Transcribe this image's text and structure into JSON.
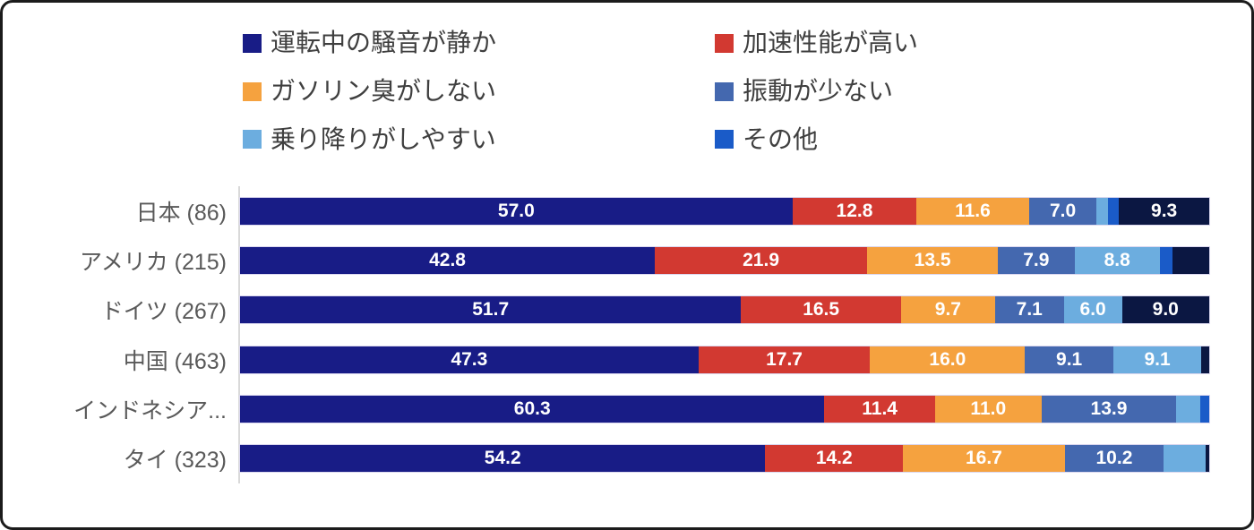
{
  "chart_data": {
    "type": "bar",
    "orientation": "horizontal",
    "stacked": true,
    "unit": "percent",
    "xlim": [
      0,
      100
    ],
    "grid": false,
    "legend_position": "top",
    "legend_columns": 2,
    "categories": [
      "日本 (86)",
      "アメリカ (215)",
      "ドイツ (267)",
      "中国 (463)",
      "インドネシア...",
      "タイ (323)"
    ],
    "series": [
      {
        "name": "運転中の騒音が静か",
        "color": "#181C86",
        "in_legend": true,
        "values": [
          57.0,
          42.8,
          51.7,
          47.3,
          60.3,
          54.2
        ],
        "labels": [
          "57.0",
          "42.8",
          "51.7",
          "47.3",
          "60.3",
          "54.2"
        ]
      },
      {
        "name": "加速性能が高い",
        "color": "#D23931",
        "in_legend": true,
        "values": [
          12.8,
          21.9,
          16.5,
          17.7,
          11.4,
          14.2
        ],
        "labels": [
          "12.8",
          "21.9",
          "16.5",
          "17.7",
          "11.4",
          "14.2"
        ]
      },
      {
        "name": "ガソリン臭がしない",
        "color": "#F5A23F",
        "in_legend": true,
        "values": [
          11.6,
          13.5,
          9.7,
          16.0,
          11.0,
          16.7
        ],
        "labels": [
          "11.6",
          "13.5",
          "9.7",
          "16.0",
          "11.0",
          "16.7"
        ]
      },
      {
        "name": "振動が少ない",
        "color": "#4468AF",
        "in_legend": true,
        "values": [
          7.0,
          7.9,
          7.1,
          9.1,
          13.9,
          10.2
        ],
        "labels": [
          "7.0",
          "7.9",
          "7.1",
          "9.1",
          "13.9",
          "10.2"
        ]
      },
      {
        "name": "乗り降りがしやすい",
        "color": "#6CADDF",
        "in_legend": true,
        "values": [
          1.2,
          8.8,
          6.0,
          9.1,
          2.5,
          4.3
        ],
        "labels": [
          "",
          "8.8",
          "6.0",
          "9.1",
          "",
          ""
        ]
      },
      {
        "name": "その他",
        "color": "#1A5BC8",
        "in_legend": true,
        "values": [
          1.1,
          1.3,
          0,
          0,
          0.9,
          0
        ],
        "labels": [
          "",
          "",
          "",
          "",
          "",
          ""
        ]
      },
      {
        "name": "unlabeled-final-segment",
        "color": "#0B1742",
        "in_legend": false,
        "values": [
          9.3,
          3.8,
          9.0,
          0.8,
          0,
          0.4
        ],
        "labels": [
          "9.3",
          "",
          "9.0",
          "",
          "",
          ""
        ]
      }
    ],
    "styles": {
      "axis_color": "#d9d9d9",
      "category_label_color": "#595959",
      "legend_text_color": "#3f3f3f",
      "value_label_color": "#ffffff"
    }
  }
}
